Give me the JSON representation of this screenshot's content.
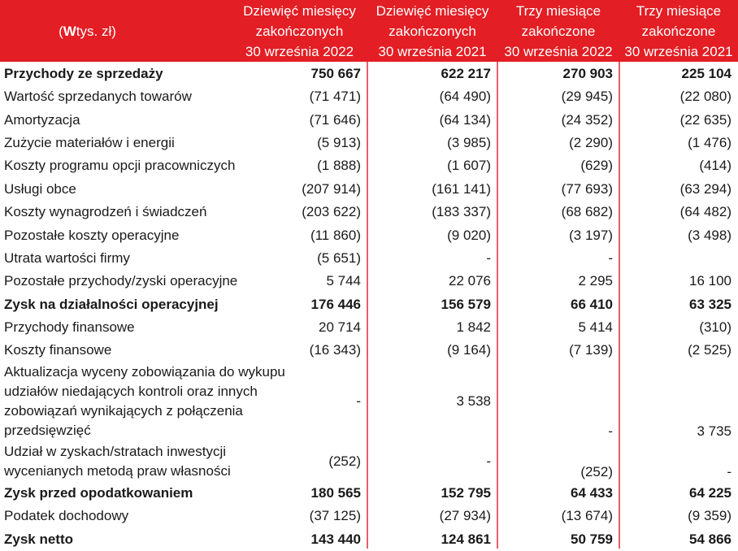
{
  "header": {
    "unit_prefix": "(",
    "unit_bold": "W",
    "unit_rest": " tys. zł)",
    "columns": [
      {
        "l1": "Dziewięć miesięcy",
        "l2": "zakończonych",
        "l3": "30 września 2022"
      },
      {
        "l1": "Dziewięć miesięcy",
        "l2": "zakończonych",
        "l3": "30 września 2021"
      },
      {
        "l1": "Trzy miesiące",
        "l2": "zakończone",
        "l3": "30 września 2022"
      },
      {
        "l1": "Trzy miesiące",
        "l2": "zakończone",
        "l3": "30 września 2021"
      }
    ]
  },
  "rows": [
    {
      "label": "Przychody ze sprzedaży",
      "v": [
        "750 667",
        "622 217",
        "270 903",
        "225 104"
      ]
    },
    {
      "label": "Wartość sprzedanych towarów",
      "v": [
        "(71 471)",
        "(64 490)",
        "(29 945)",
        "(22 080)"
      ]
    },
    {
      "label": "Amortyzacja",
      "v": [
        "(71 646)",
        "(64 134)",
        "(24 352)",
        "(22 635)"
      ]
    },
    {
      "label": "Zużycie materiałów i energii",
      "v": [
        "(5 913)",
        "(3 985)",
        "(2 290)",
        "(1 476)"
      ]
    },
    {
      "label": "Koszty programu opcji pracowniczych",
      "v": [
        "(1 888)",
        "(1 607)",
        "(629)",
        "(414)"
      ]
    },
    {
      "label": "Usługi obce",
      "v": [
        "(207 914)",
        "(161 141)",
        "(77 693)",
        "(63 294)"
      ]
    },
    {
      "label": "Koszty wynagrodzeń i świadczeń",
      "v": [
        "(203 622)",
        "(183 337)",
        "(68 682)",
        "(64 482)"
      ]
    },
    {
      "label": "Pozostałe koszty operacyjne",
      "v": [
        "(11 860)",
        "(9 020)",
        "(3 197)",
        "(3 498)"
      ]
    },
    {
      "label": "Utrata wartości firmy",
      "v": [
        "(5 651)",
        "-",
        "-",
        ""
      ]
    },
    {
      "label": "Pozostałe przychody/zyski operacyjne",
      "v": [
        "5 744",
        "22 076",
        "2 295",
        "16 100"
      ]
    },
    {
      "label": "Zysk na działalności operacyjnej",
      "v": [
        "176 446",
        "156 579",
        "66 410",
        "63 325"
      ]
    },
    {
      "label": "Przychody finansowe",
      "v": [
        "20 714",
        "1 842",
        "5 414",
        "(310)"
      ]
    },
    {
      "label": "Koszty finansowe",
      "v": [
        "(16 343)",
        "(9 164)",
        "(7 139)",
        "(2 525)"
      ]
    },
    {
      "label": "Aktualizacja wyceny zobowiązania do wykupu udziałów niedających kontroli oraz innych zobowiązań wynikających z połączenia przedsięwzięć",
      "v": [
        "-",
        "3 538",
        "-",
        "3 735"
      ]
    },
    {
      "label": "Udział w zyskach/stratach inwestycji wycenianych metodą praw własności",
      "v": [
        "(252)",
        "-",
        "(252)",
        "-"
      ]
    },
    {
      "label": "Zysk przed opodatkowaniem",
      "v": [
        "180 565",
        "152 795",
        "64 433",
        "64 225"
      ]
    },
    {
      "label": "Podatek dochodowy",
      "v": [
        "(37 125)",
        "(27 934)",
        "(13 674)",
        "(9 359)"
      ]
    },
    {
      "label": "Zysk netto",
      "v": [
        "143 440",
        "124 861",
        "50 759",
        "54 866"
      ]
    }
  ],
  "colors": {
    "header_bg": "#e31e24",
    "divider": "#e5606a"
  }
}
